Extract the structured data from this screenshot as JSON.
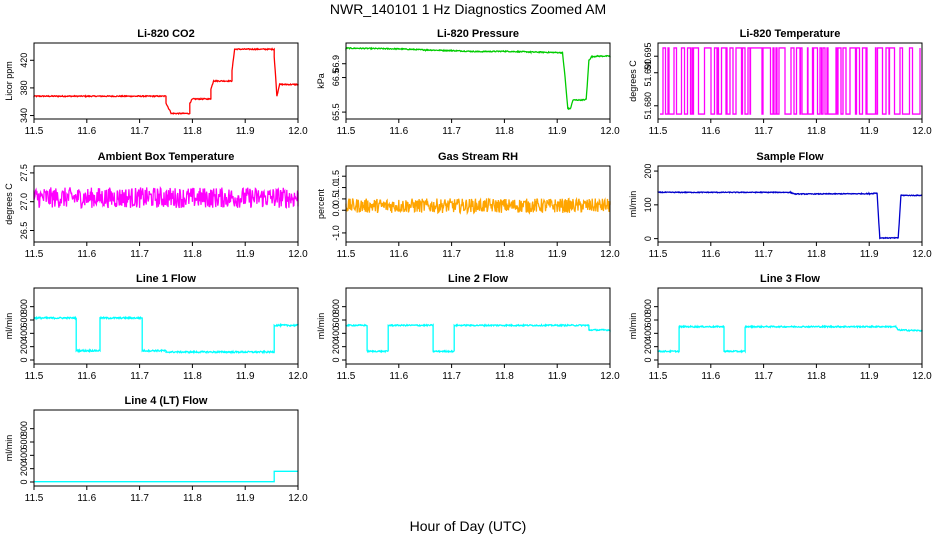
{
  "page": {
    "title": "NWR_140101  1 Hz Diagnostics Zoomed AM",
    "xlabel": "Hour of Day (UTC)"
  },
  "chart_data": [
    {
      "type": "line",
      "title": "Li-820 CO2",
      "ylabel": "Licor ppm",
      "color": "#ff0000",
      "xlim": [
        11.5,
        12.0
      ],
      "ylim": [
        335,
        445
      ],
      "yticks": [
        340,
        380,
        420
      ],
      "ytick_labels": [
        "340",
        "380",
        "420"
      ],
      "xticks": [
        11.5,
        11.6,
        11.7,
        11.8,
        11.9,
        12.0
      ],
      "xtick_labels": [
        "11.5",
        "11.6",
        "11.7",
        "11.8",
        "11.9",
        "12.0"
      ],
      "series": [
        {
          "x": [
            11.5,
            11.75,
            11.75,
            11.76,
            11.76,
            11.795,
            11.795,
            11.8,
            11.8,
            11.835,
            11.835,
            11.84,
            11.84,
            11.875,
            11.875,
            11.88,
            11.88,
            11.955,
            11.955,
            11.96,
            11.96,
            11.965,
            11.965,
            12.0
          ],
          "y": [
            368,
            368,
            358,
            343,
            343,
            343,
            358,
            364,
            364,
            364,
            378,
            390,
            390,
            390,
            405,
            436,
            436,
            436,
            425,
            368,
            368,
            385,
            385,
            385
          ],
          "noise": 0.8
        }
      ]
    },
    {
      "type": "line",
      "title": "Li-820 Pressure",
      "ylabel": "kPa",
      "color": "#00cc00",
      "xlim": [
        11.5,
        12.0
      ],
      "ylim": [
        65.3,
        67.5
      ],
      "yticks": [
        65.5,
        66.5,
        66.9
      ],
      "ytick_labels": [
        "65.5",
        "66.5",
        "66.9"
      ],
      "xticks": [
        11.5,
        11.6,
        11.7,
        11.8,
        11.9,
        12.0
      ],
      "xtick_labels": [
        "11.5",
        "11.6",
        "11.7",
        "11.8",
        "11.9",
        "12.0"
      ],
      "series": [
        {
          "x": [
            11.5,
            11.6,
            11.65,
            11.7,
            11.75,
            11.8,
            11.85,
            11.91,
            11.915,
            11.92,
            11.925,
            11.93,
            11.95,
            11.955,
            11.96,
            11.965,
            11.975,
            12.0
          ],
          "y": [
            67.35,
            67.33,
            67.3,
            67.28,
            67.25,
            67.26,
            67.24,
            67.22,
            66.5,
            65.6,
            65.6,
            65.85,
            65.85,
            65.87,
            67.0,
            67.1,
            67.12,
            67.12
          ],
          "noise": 0.015
        }
      ]
    },
    {
      "type": "line",
      "title": "Li-820 Temperature",
      "ylabel": "degrees C",
      "color": "#ff00ff",
      "xlim": [
        11.5,
        12.0
      ],
      "ylim": [
        51.676,
        51.699
      ],
      "yticks": [
        51.68,
        51.69,
        51.695
      ],
      "ytick_labels": [
        "51.680",
        "51.690",
        "51.695"
      ],
      "xticks": [
        11.5,
        11.6,
        11.7,
        11.8,
        11.9,
        12.0
      ],
      "xtick_labels": [
        "11.5",
        "11.6",
        "11.7",
        "11.8",
        "11.9",
        "12.0"
      ],
      "series": [
        {
          "x": [
            11.5,
            12.0
          ],
          "y": [
            51.6775,
            51.6975
          ],
          "toggle": true
        }
      ]
    },
    {
      "type": "line",
      "title": "Ambient Box Temperature",
      "ylabel": "degrees C",
      "color": "#ff00ff",
      "xlim": [
        11.5,
        12.0
      ],
      "ylim": [
        26.3,
        27.62
      ],
      "yticks": [
        26.5,
        27.0,
        27.5
      ],
      "ytick_labels": [
        "26.5",
        "27.0",
        "27.5"
      ],
      "xticks": [
        11.5,
        11.6,
        11.7,
        11.8,
        11.9,
        12.0
      ],
      "xtick_labels": [
        "11.5",
        "11.6",
        "11.7",
        "11.8",
        "11.9",
        "12.0"
      ],
      "series": [
        {
          "x": [
            11.5,
            12.0
          ],
          "y": [
            27.07,
            27.07
          ],
          "noise": 0.18
        }
      ]
    },
    {
      "type": "line",
      "title": "Gas Stream RH",
      "ylabel": "percent",
      "color": "#ffa500",
      "xlim": [
        11.5,
        12.0
      ],
      "ylim": [
        -1.4,
        1.95
      ],
      "yticks": [
        -1.0,
        0.0,
        0.5,
        1.0,
        1.5
      ],
      "ytick_labels": [
        "-1.0",
        "0.0",
        "0.5",
        "1.0",
        "1.5"
      ],
      "xticks": [
        11.5,
        11.6,
        11.7,
        11.8,
        11.9,
        12.0
      ],
      "xtick_labels": [
        "11.5",
        "11.6",
        "11.7",
        "11.8",
        "11.9",
        "12.0"
      ],
      "series": [
        {
          "x": [
            11.5,
            12.0
          ],
          "y": [
            0.2,
            0.2
          ],
          "noise": 0.32
        }
      ]
    },
    {
      "type": "line",
      "title": "Sample Flow",
      "ylabel": "ml/min",
      "color": "#0000cc",
      "xlim": [
        11.5,
        12.0
      ],
      "ylim": [
        -10,
        215
      ],
      "yticks": [
        0,
        100,
        200
      ],
      "ytick_labels": [
        "0",
        "100",
        "200"
      ],
      "xticks": [
        11.5,
        11.6,
        11.7,
        11.8,
        11.9,
        12.0
      ],
      "xtick_labels": [
        "11.5",
        "11.6",
        "11.7",
        "11.8",
        "11.9",
        "12.0"
      ],
      "series": [
        {
          "x": [
            11.5,
            11.75,
            11.76,
            11.9,
            11.915,
            11.92,
            11.955,
            11.96,
            12.0
          ],
          "y": [
            137,
            137,
            132,
            133,
            135,
            2,
            2,
            128,
            128
          ],
          "noise": 1.2
        }
      ]
    },
    {
      "type": "line",
      "title": "Line 1 Flow",
      "ylabel": "ml/min",
      "color": "#00ffff",
      "xlim": [
        11.5,
        12.0
      ],
      "ylim": [
        -60,
        1080
      ],
      "yticks": [
        0,
        200,
        400,
        600,
        800
      ],
      "ytick_labels": [
        "0",
        "200",
        "400",
        "600",
        "800"
      ],
      "xticks": [
        11.5,
        11.6,
        11.7,
        11.8,
        11.9,
        12.0
      ],
      "xtick_labels": [
        "11.5",
        "11.6",
        "11.7",
        "11.8",
        "11.9",
        "12.0"
      ],
      "series": [
        {
          "x": [
            11.5,
            11.58,
            11.58,
            11.625,
            11.625,
            11.705,
            11.705,
            11.75,
            11.75,
            11.955,
            11.955,
            12.0
          ],
          "y": [
            630,
            630,
            140,
            140,
            630,
            630,
            140,
            140,
            120,
            120,
            520,
            520
          ],
          "noise": 12
        }
      ]
    },
    {
      "type": "line",
      "title": "Line 2 Flow",
      "ylabel": "ml/min",
      "color": "#00ffff",
      "xlim": [
        11.5,
        12.0
      ],
      "ylim": [
        -60,
        1080
      ],
      "yticks": [
        0,
        200,
        400,
        600,
        800
      ],
      "ytick_labels": [
        "0",
        "200",
        "400",
        "600",
        "800"
      ],
      "xticks": [
        11.5,
        11.6,
        11.7,
        11.8,
        11.9,
        12.0
      ],
      "xtick_labels": [
        "11.5",
        "11.6",
        "11.7",
        "11.8",
        "11.9",
        "12.0"
      ],
      "series": [
        {
          "x": [
            11.5,
            11.54,
            11.54,
            11.58,
            11.58,
            11.665,
            11.665,
            11.705,
            11.705,
            11.96,
            11.96,
            12.0
          ],
          "y": [
            520,
            520,
            130,
            130,
            520,
            520,
            130,
            130,
            520,
            520,
            450,
            450
          ],
          "noise": 10
        }
      ]
    },
    {
      "type": "line",
      "title": "Line 3 Flow",
      "ylabel": "ml/min",
      "color": "#00ffff",
      "xlim": [
        11.5,
        12.0
      ],
      "ylim": [
        -60,
        1080
      ],
      "yticks": [
        0,
        200,
        400,
        600,
        800
      ],
      "ytick_labels": [
        "0",
        "200",
        "400",
        "600",
        "800"
      ],
      "xticks": [
        11.5,
        11.6,
        11.7,
        11.8,
        11.9,
        12.0
      ],
      "xtick_labels": [
        "11.5",
        "11.6",
        "11.7",
        "11.8",
        "11.9",
        "12.0"
      ],
      "series": [
        {
          "x": [
            11.5,
            11.54,
            11.54,
            11.625,
            11.625,
            11.665,
            11.665,
            11.95,
            11.955,
            12.0
          ],
          "y": [
            130,
            130,
            500,
            500,
            130,
            130,
            500,
            500,
            450,
            440
          ],
          "noise": 10
        }
      ]
    },
    {
      "type": "line",
      "title": "Line 4 (LT) Flow",
      "ylabel": "ml/min",
      "color": "#00ffff",
      "xlim": [
        11.5,
        12.0
      ],
      "ylim": [
        -60,
        1080
      ],
      "yticks": [
        0,
        200,
        400,
        600,
        800
      ],
      "ytick_labels": [
        "0",
        "200",
        "400",
        "600",
        "800"
      ],
      "xticks": [
        11.5,
        11.6,
        11.7,
        11.8,
        11.9,
        12.0
      ],
      "xtick_labels": [
        "11.5",
        "11.6",
        "11.7",
        "11.8",
        "11.9",
        "12.0"
      ],
      "series": [
        {
          "x": [
            11.5,
            11.955,
            11.955,
            12.0
          ],
          "y": [
            5,
            5,
            160,
            160
          ],
          "noise": 0
        }
      ]
    }
  ]
}
